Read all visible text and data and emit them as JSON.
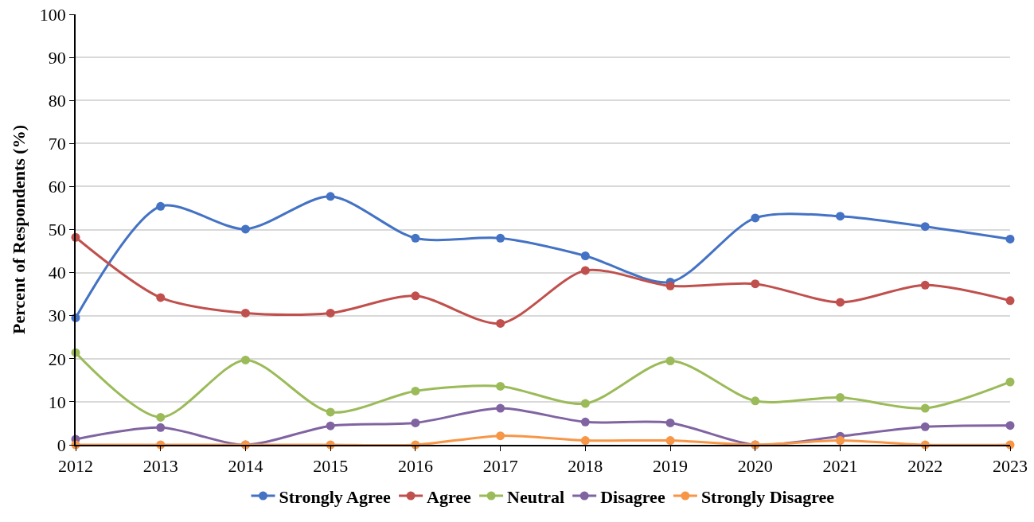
{
  "chart_data": {
    "type": "line",
    "ylabel": "Percent of Respondents (%)",
    "categories": [
      "2012",
      "2013",
      "2014",
      "2015",
      "2016",
      "2017",
      "2018",
      "2019",
      "2020",
      "2021",
      "2022",
      "2023"
    ],
    "series": [
      {
        "name": "Strongly Agree",
        "color": "#4472c4",
        "values": [
          29.5,
          55.4,
          50.1,
          57.7,
          48.0,
          48.0,
          43.9,
          37.8,
          52.7,
          53.1,
          50.7,
          47.8
        ]
      },
      {
        "name": "Agree",
        "color": "#c0504d",
        "values": [
          48.2,
          34.2,
          30.6,
          30.6,
          34.6,
          28.2,
          40.5,
          36.9,
          37.4,
          33.1,
          37.1,
          33.5
        ]
      },
      {
        "name": "Neutral",
        "color": "#9bbb59",
        "values": [
          21.4,
          6.4,
          19.7,
          7.6,
          12.5,
          13.6,
          9.6,
          19.5,
          10.2,
          11.0,
          8.5,
          14.6
        ]
      },
      {
        "name": "Disagree",
        "color": "#8064a2",
        "values": [
          1.3,
          4.0,
          0,
          4.4,
          5.1,
          8.5,
          5.3,
          5.1,
          0,
          2.0,
          4.2,
          4.5
        ]
      },
      {
        "name": "Strongly Disagree",
        "color": "#f79646",
        "values": [
          0,
          0,
          0,
          0,
          0,
          2.1,
          1.0,
          1.0,
          0,
          1.0,
          0,
          0
        ]
      }
    ],
    "ylim": [
      0,
      100
    ],
    "yticks": [
      0,
      10,
      20,
      30,
      40,
      50,
      60,
      70,
      80,
      90,
      100
    ],
    "grid": "y",
    "legend": "bottom",
    "marker": "circle",
    "line_style": "solid"
  }
}
